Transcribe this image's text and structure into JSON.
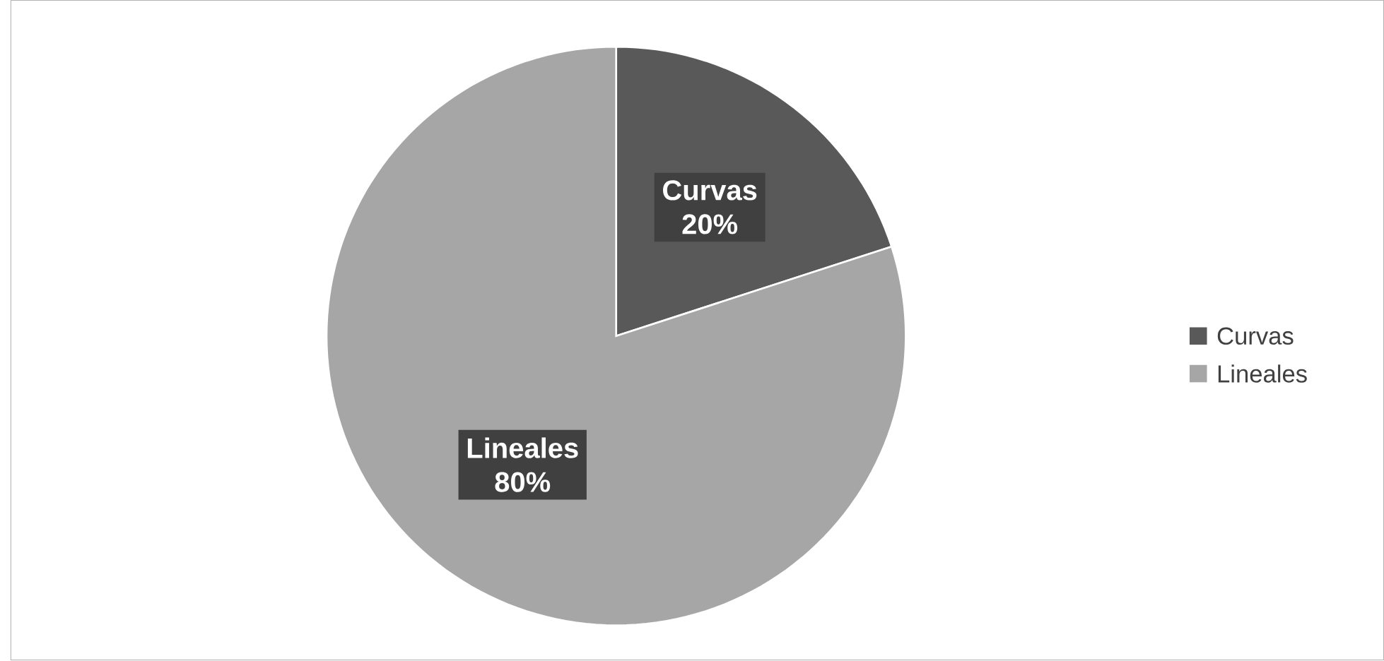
{
  "chart_data": {
    "type": "pie",
    "categories": [
      "Curvas",
      "Lineales"
    ],
    "values": [
      20,
      80
    ],
    "colors": [
      "#595959",
      "#a6a6a6"
    ],
    "value_labels": [
      "20%",
      "80%"
    ],
    "legend": "right"
  }
}
